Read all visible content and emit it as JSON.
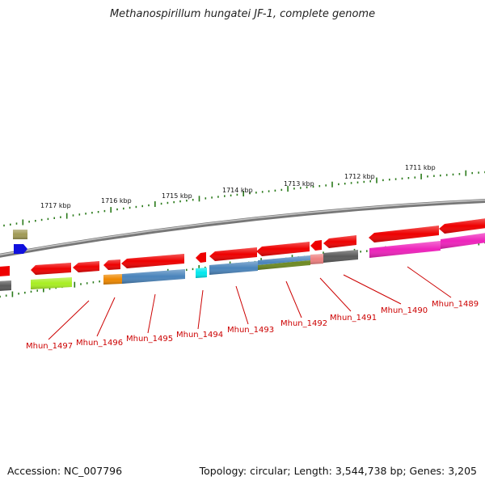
{
  "title": "Methanospirillum hungatei JF-1, complete genome",
  "footer": {
    "accession": "Accession: NC_007796",
    "summary": "Topology: circular; Length: 3,544,738 bp; Genes: 3,205"
  },
  "kbp_labels": [
    "1717 kbp",
    "1716 kbp",
    "1715 kbp",
    "1714 kbp",
    "1713 kbp",
    "1712 kbp",
    "1711 kbp"
  ],
  "gene_labels": [
    "Mhun_1497",
    "Mhun_1496",
    "Mhun_1495",
    "Mhun_1494",
    "Mhun_1493",
    "Mhun_1492",
    "Mhun_1491",
    "Mhun_1490",
    "Mhun_1489"
  ],
  "colors": {
    "backbone": "#808080",
    "gene_red": "#ee0000",
    "label_red": "#cc0000",
    "tick_green": "#2a7a1a",
    "steel_blue": "#4a84bb",
    "magenta": "#ee22bb",
    "olive": "#6e8a22",
    "lime": "#a8ee22",
    "orange": "#ee8800",
    "cyan": "#00e8ee",
    "gray": "#5a5a5a",
    "khaki": "#a09a55",
    "blue": "#1010dd",
    "salmon": "#ee8080"
  }
}
